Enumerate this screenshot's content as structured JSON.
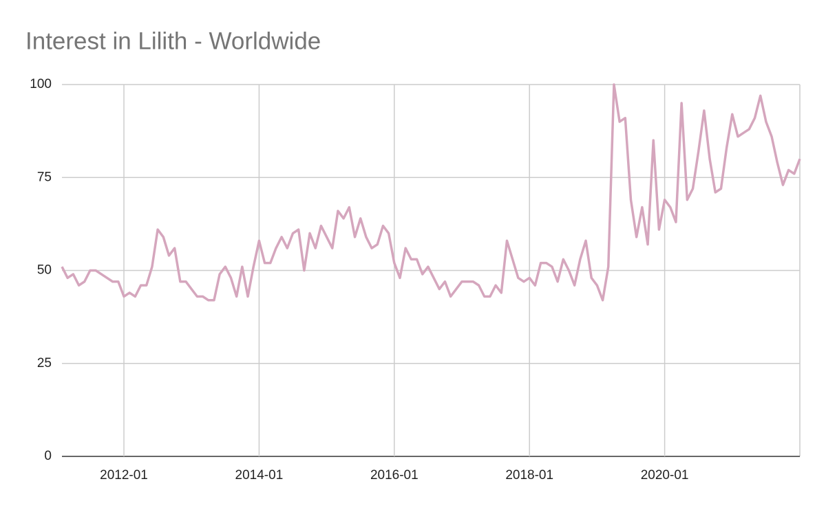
{
  "chart_data": {
    "type": "line",
    "title": "Interest in Lilith - Worldwide",
    "x": [
      "2011-02",
      "2011-03",
      "2011-04",
      "2011-05",
      "2011-06",
      "2011-07",
      "2011-08",
      "2011-09",
      "2011-10",
      "2011-11",
      "2011-12",
      "2012-01",
      "2012-02",
      "2012-03",
      "2012-04",
      "2012-05",
      "2012-06",
      "2012-07",
      "2012-08",
      "2012-09",
      "2012-10",
      "2012-11",
      "2012-12",
      "2013-01",
      "2013-02",
      "2013-03",
      "2013-04",
      "2013-05",
      "2013-06",
      "2013-07",
      "2013-08",
      "2013-09",
      "2013-10",
      "2013-11",
      "2013-12",
      "2014-01",
      "2014-02",
      "2014-03",
      "2014-04",
      "2014-05",
      "2014-06",
      "2014-07",
      "2014-08",
      "2014-09",
      "2014-10",
      "2014-11",
      "2014-12",
      "2015-01",
      "2015-02",
      "2015-03",
      "2015-04",
      "2015-05",
      "2015-06",
      "2015-07",
      "2015-08",
      "2015-09",
      "2015-10",
      "2015-11",
      "2015-12",
      "2016-01",
      "2016-02",
      "2016-03",
      "2016-04",
      "2016-05",
      "2016-06",
      "2016-07",
      "2016-08",
      "2016-09",
      "2016-10",
      "2016-11",
      "2016-12",
      "2017-01",
      "2017-02",
      "2017-03",
      "2017-04",
      "2017-05",
      "2017-06",
      "2017-07",
      "2017-08",
      "2017-09",
      "2017-10",
      "2017-11",
      "2017-12",
      "2018-01",
      "2018-02",
      "2018-03",
      "2018-04",
      "2018-05",
      "2018-06",
      "2018-07",
      "2018-08",
      "2018-09",
      "2018-10",
      "2018-11",
      "2018-12",
      "2019-01",
      "2019-02",
      "2019-03",
      "2019-04",
      "2019-05",
      "2019-06",
      "2019-07",
      "2019-08",
      "2019-09",
      "2019-10",
      "2019-11",
      "2019-12",
      "2020-01",
      "2020-02",
      "2020-03",
      "2020-04",
      "2020-05",
      "2020-06",
      "2020-07",
      "2020-08",
      "2020-09",
      "2020-10",
      "2020-11",
      "2020-12",
      "2021-01",
      "2021-02",
      "2021-03",
      "2021-04",
      "2021-05",
      "2021-06",
      "2021-07",
      "2021-08",
      "2021-09",
      "2021-10",
      "2021-11",
      "2021-12",
      "2022-01"
    ],
    "values": [
      51,
      48,
      49,
      46,
      47,
      50,
      50,
      49,
      48,
      47,
      47,
      43,
      44,
      43,
      46,
      46,
      51,
      61,
      59,
      54,
      56,
      47,
      47,
      45,
      43,
      43,
      42,
      42,
      49,
      51,
      48,
      43,
      51,
      43,
      51,
      58,
      52,
      52,
      56,
      59,
      56,
      60,
      61,
      50,
      60,
      56,
      62,
      59,
      56,
      66,
      64,
      67,
      59,
      64,
      59,
      56,
      57,
      62,
      60,
      52,
      48,
      56,
      53,
      53,
      49,
      51,
      48,
      45,
      47,
      43,
      45,
      47,
      47,
      47,
      46,
      43,
      43,
      46,
      44,
      58,
      53,
      48,
      47,
      48,
      46,
      52,
      52,
      51,
      47,
      53,
      50,
      46,
      53,
      58,
      48,
      46,
      42,
      51,
      100,
      90,
      91,
      69,
      59,
      67,
      57,
      85,
      61,
      69,
      67,
      63,
      95,
      69,
      72,
      82,
      93,
      80,
      71,
      72,
      83,
      92,
      86,
      87,
      88,
      91,
      97,
      90,
      86,
      79,
      73,
      77,
      76,
      80
    ],
    "color": "#d5a6bd",
    "xlim": [
      "2011-02",
      "2022-01"
    ],
    "xticks": [
      "2012-01",
      "2014-01",
      "2016-01",
      "2018-01",
      "2020-01"
    ],
    "ylim": [
      0,
      100
    ],
    "yticks": [
      0,
      25,
      50,
      75,
      100
    ],
    "grid": true
  }
}
